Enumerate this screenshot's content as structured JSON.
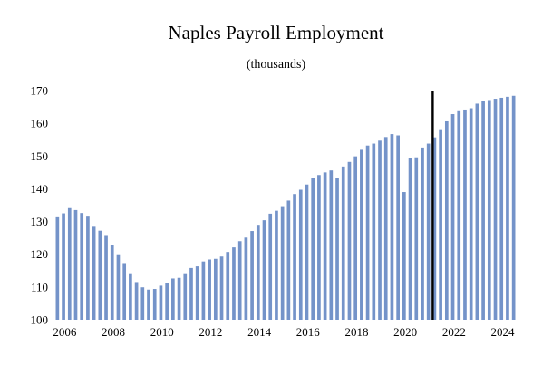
{
  "chart_data": {
    "type": "bar",
    "title": "Naples Payroll Employment",
    "subtitle": "(thousands)",
    "xlabel": "",
    "ylabel": "",
    "ylim": [
      100,
      170
    ],
    "yticks": [
      "100",
      "110",
      "120",
      "130",
      "140",
      "150",
      "160",
      "170"
    ],
    "xticks": [
      "2006",
      "2008",
      "2010",
      "2012",
      "2014",
      "2016",
      "2018",
      "2020",
      "2022",
      "2024"
    ],
    "x_start": "2006 Q1",
    "frequency": "quarterly",
    "values": [
      131.3,
      132.5,
      134.1,
      133.5,
      132.6,
      131.5,
      128.4,
      127.2,
      125.6,
      122.9,
      120.0,
      117.3,
      114.2,
      111.5,
      109.9,
      109.2,
      109.4,
      110.4,
      111.3,
      112.6,
      112.8,
      114.2,
      115.8,
      116.3,
      117.8,
      118.4,
      118.6,
      119.3,
      120.7,
      122.1,
      124.0,
      125.1,
      127.1,
      129.0,
      130.4,
      132.4,
      133.3,
      134.7,
      136.4,
      138.4,
      139.7,
      141.3,
      143.4,
      144.2,
      145.0,
      145.6,
      143.4,
      146.8,
      148.2,
      149.9,
      151.9,
      153.2,
      153.8,
      154.7,
      155.8,
      156.7,
      156.3,
      139.0,
      149.3,
      149.6,
      152.6,
      153.8,
      155.7,
      158.2,
      160.6,
      162.8,
      163.7,
      164.2,
      164.6,
      166.0,
      166.9,
      167.1,
      167.5,
      167.8,
      168.1,
      168.4
    ],
    "bar_color": "#7493c9",
    "forecast_line_at": "2021 Q3",
    "forecast_line_color": "#000000",
    "grid": false,
    "legend": "none"
  }
}
